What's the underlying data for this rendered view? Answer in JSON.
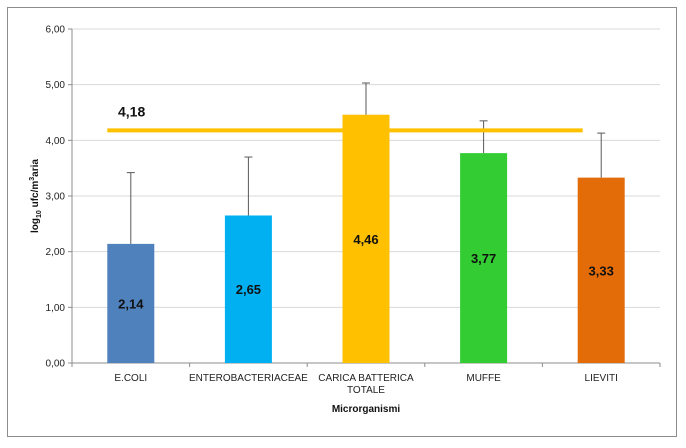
{
  "chart_data": {
    "type": "bar",
    "categories": [
      "E.COLI",
      "ENTEROBACTERIACEAE",
      "CARICA BATTERICA TOTALE",
      "MUFFE",
      "LIEVITI"
    ],
    "values": [
      2.14,
      2.65,
      4.46,
      3.77,
      3.33
    ],
    "value_labels": [
      "2,14",
      "2,65",
      "4,46",
      "3,77",
      "3,33"
    ],
    "error_upper": [
      3.42,
      3.7,
      5.03,
      4.35,
      4.13
    ],
    "colors": [
      "#4f81bd",
      "#00b0f0",
      "#ffc000",
      "#33cc33",
      "#e36c09"
    ],
    "ylim": [
      0,
      6
    ],
    "yticks": [
      "0,00",
      "1,00",
      "2,00",
      "3,00",
      "4,00",
      "5,00",
      "6,00"
    ],
    "xlabel": "Microrganismi",
    "ylabel": {
      "prefix": "log",
      "sub": "10",
      "mid": " ufc/m",
      "sup": "3",
      "suffix": "aria"
    },
    "reference_line": {
      "value": 4.18,
      "label": "4,18",
      "color": "#ffc000"
    },
    "grid": true
  }
}
